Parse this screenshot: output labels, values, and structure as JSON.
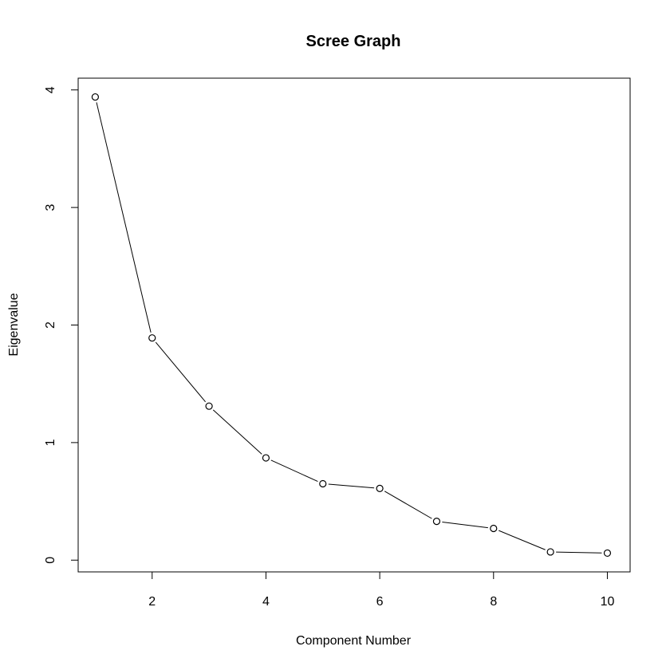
{
  "chart_data": {
    "type": "line",
    "title": "Scree Graph",
    "xlabel": "Component Number",
    "ylabel": "Eigenvalue",
    "xlim": [
      0.7,
      10.4
    ],
    "ylim": [
      -0.1,
      4.1
    ],
    "xticks": [
      2,
      4,
      6,
      8,
      10
    ],
    "yticks": [
      0,
      1,
      2,
      3,
      4
    ],
    "grid": false,
    "marker": "open-circle",
    "x": [
      1,
      2,
      3,
      4,
      5,
      6,
      7,
      8,
      9,
      10
    ],
    "series": [
      {
        "values": [
          3.94,
          1.89,
          1.31,
          0.87,
          0.65,
          0.61,
          0.33,
          0.27,
          0.07,
          0.06
        ]
      }
    ],
    "colors": {
      "line": "#000000",
      "marker_fill": "#ffffff",
      "frame": "#000000"
    }
  }
}
